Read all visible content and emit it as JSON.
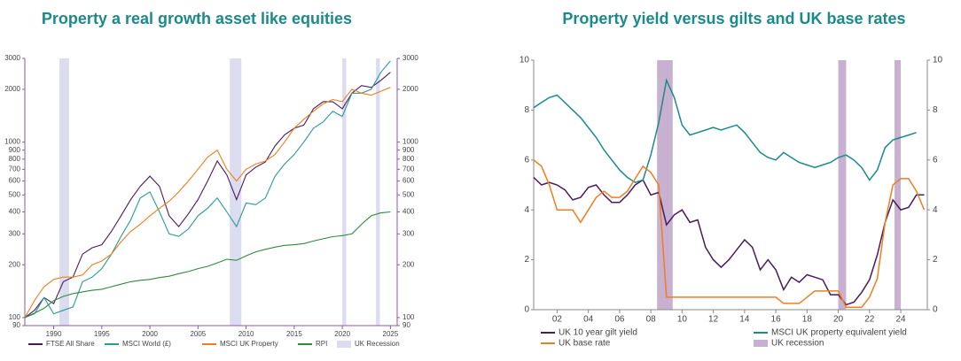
{
  "chart_data": [
    {
      "type": "line",
      "title": "Property a real growth asset like equities",
      "log_y": true,
      "grid": false,
      "x": [
        1987,
        1988,
        1989,
        1990,
        1991,
        1992,
        1993,
        1994,
        1995,
        1996,
        1997,
        1998,
        1999,
        2000,
        2001,
        2002,
        2003,
        2004,
        2005,
        2006,
        2007,
        2008,
        2009,
        2010,
        2011,
        2012,
        2013,
        2014,
        2015,
        2016,
        2017,
        2018,
        2019,
        2020,
        2021,
        2022,
        2023,
        2024,
        2025
      ],
      "xlim": [
        1987,
        2025.7
      ],
      "xticks": [
        1990,
        1995,
        2000,
        2005,
        2010,
        2015,
        2020,
        2025
      ],
      "ylim": [
        90,
        3000
      ],
      "yticks": [
        90,
        100,
        200,
        300,
        400,
        500,
        600,
        700,
        800,
        900,
        1000,
        2000,
        3000
      ],
      "series": [
        {
          "name": "FTSE All Share",
          "color": "#4b1a5e",
          "values": [
            100,
            110,
            130,
            120,
            160,
            170,
            230,
            250,
            260,
            310,
            380,
            470,
            560,
            640,
            560,
            380,
            330,
            390,
            470,
            600,
            780,
            650,
            470,
            650,
            720,
            770,
            950,
            1100,
            1200,
            1250,
            1550,
            1700,
            1700,
            1550,
            1900,
            2100,
            2050,
            2250,
            2500
          ]
        },
        {
          "name": "MSCI World (£)",
          "color": "#2a9a9a",
          "values": [
            100,
            105,
            130,
            105,
            110,
            115,
            160,
            170,
            190,
            230,
            290,
            360,
            480,
            520,
            400,
            300,
            290,
            320,
            380,
            420,
            480,
            400,
            330,
            450,
            440,
            480,
            640,
            750,
            850,
            1000,
            1200,
            1300,
            1500,
            1400,
            1900,
            1900,
            2000,
            2500,
            2900
          ]
        },
        {
          "name": "MSCI UK Property",
          "color": "#f07d1e",
          "values": [
            100,
            125,
            150,
            165,
            170,
            170,
            175,
            200,
            210,
            230,
            270,
            310,
            340,
            380,
            420,
            460,
            520,
            600,
            700,
            820,
            900,
            700,
            600,
            700,
            750,
            780,
            850,
            1000,
            1200,
            1350,
            1500,
            1650,
            1750,
            1700,
            2000,
            1900,
            1850,
            1950,
            2050
          ]
        },
        {
          "name": "RPI",
          "color": "#2e8b3a",
          "values": [
            100,
            106,
            113,
            125,
            132,
            137,
            140,
            143,
            145,
            150,
            155,
            160,
            163,
            165,
            169,
            172,
            178,
            183,
            190,
            196,
            205,
            215,
            212,
            225,
            237,
            245,
            252,
            258,
            260,
            264,
            273,
            281,
            289,
            293,
            300,
            340,
            380,
            395,
            400
          ]
        }
      ],
      "shading": {
        "name": "UK Recession",
        "color": "#dcdcf0",
        "ranges": [
          [
            1990.6,
            1991.6
          ],
          [
            2008.3,
            2009.5
          ],
          [
            2020.0,
            2020.4
          ],
          [
            2023.5,
            2023.9
          ]
        ]
      }
    },
    {
      "type": "line",
      "title": "Property yield versus gilts and UK base rates",
      "grid": false,
      "x": [
        2000.5,
        2001,
        2001.5,
        2002,
        2002.5,
        2003,
        2003.5,
        2004,
        2004.5,
        2005,
        2005.5,
        2006,
        2006.5,
        2007,
        2007.5,
        2008,
        2008.5,
        2009,
        2009.5,
        2010,
        2010.5,
        2011,
        2011.5,
        2012,
        2012.5,
        2013,
        2013.5,
        2014,
        2014.5,
        2015,
        2015.5,
        2016,
        2016.5,
        2017,
        2017.5,
        2018,
        2018.5,
        2019,
        2019.5,
        2020,
        2020.5,
        2021,
        2021.5,
        2022,
        2022.5,
        2023,
        2023.5,
        2024,
        2024.5,
        2025,
        2025.5
      ],
      "xlim": [
        2000.5,
        2025.7
      ],
      "xticks": [
        {
          "value": 2002,
          "label": "02"
        },
        {
          "value": 2004,
          "label": "04"
        },
        {
          "value": 2006,
          "label": "06"
        },
        {
          "value": 2008,
          "label": "08"
        },
        {
          "value": 2010,
          "label": "10"
        },
        {
          "value": 2012,
          "label": "12"
        },
        {
          "value": 2014,
          "label": "14"
        },
        {
          "value": 2016,
          "label": "16"
        },
        {
          "value": 2018,
          "label": "18"
        },
        {
          "value": 2020,
          "label": "20"
        },
        {
          "value": 2022,
          "label": "22"
        },
        {
          "value": 2024,
          "label": "24"
        }
      ],
      "ylim": [
        0,
        10
      ],
      "yticks": [
        0,
        2,
        4,
        6,
        8,
        10
      ],
      "series": [
        {
          "name": "UK 10 year gilt yield",
          "color": "#4b1a5e",
          "values": [
            5.3,
            5.0,
            5.1,
            5.0,
            4.8,
            4.4,
            4.5,
            4.9,
            5.0,
            4.6,
            4.3,
            4.3,
            4.6,
            5.0,
            5.2,
            4.6,
            4.7,
            3.4,
            3.8,
            4.0,
            3.5,
            3.6,
            2.5,
            2.0,
            1.7,
            2.0,
            2.4,
            2.8,
            2.5,
            1.6,
            2.0,
            1.6,
            0.8,
            1.3,
            1.1,
            1.4,
            1.3,
            1.2,
            0.6,
            0.6,
            0.2,
            0.3,
            0.7,
            1.2,
            2.2,
            3.5,
            4.4,
            4.0,
            4.1,
            4.6,
            4.6
          ]
        },
        {
          "name": "MSCI UK property equivalent yield",
          "color": "#1a8a8a",
          "values": [
            8.1,
            8.3,
            8.5,
            8.6,
            8.3,
            8.0,
            7.7,
            7.3,
            6.9,
            6.4,
            6.0,
            5.6,
            5.3,
            5.1,
            5.2,
            6.2,
            7.5,
            9.2,
            8.5,
            7.4,
            7.0,
            7.1,
            7.2,
            7.3,
            7.2,
            7.3,
            7.4,
            7.1,
            6.7,
            6.3,
            6.1,
            6.0,
            6.3,
            6.1,
            5.9,
            5.8,
            5.7,
            5.8,
            5.9,
            6.1,
            6.2,
            6.0,
            5.7,
            5.2,
            5.6,
            6.5,
            6.8,
            6.9,
            7.0,
            7.1,
            null
          ]
        },
        {
          "name": "UK base rate",
          "color": "#f07d1e",
          "values": [
            6.0,
            5.75,
            5.0,
            4.0,
            4.0,
            4.0,
            3.5,
            4.0,
            4.5,
            4.75,
            4.5,
            4.5,
            4.75,
            5.25,
            5.75,
            5.5,
            5.0,
            0.5,
            0.5,
            0.5,
            0.5,
            0.5,
            0.5,
            0.5,
            0.5,
            0.5,
            0.5,
            0.5,
            0.5,
            0.5,
            0.5,
            0.5,
            0.25,
            0.25,
            0.25,
            0.5,
            0.75,
            0.75,
            0.75,
            0.75,
            0.1,
            0.1,
            0.1,
            0.5,
            1.25,
            3.5,
            5.0,
            5.25,
            5.25,
            4.75,
            4.0
          ]
        }
      ],
      "shading": {
        "name": "UK recession",
        "color": "#c8b0d0",
        "ranges": [
          [
            2008.4,
            2009.4
          ],
          [
            2020.0,
            2020.5
          ],
          [
            2023.6,
            2024.0
          ]
        ]
      }
    }
  ]
}
